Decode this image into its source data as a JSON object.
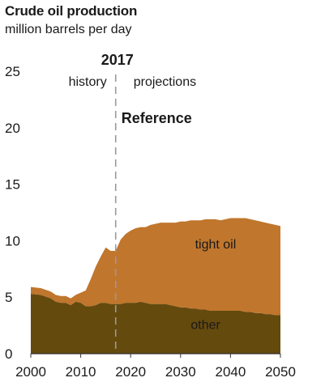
{
  "chart_data": {
    "type": "area",
    "title": "Crude oil production",
    "subtitle": "million barrels per day",
    "xlabel": "",
    "ylabel": "",
    "xlim": [
      2000,
      2050
    ],
    "ylim": [
      0,
      25
    ],
    "x_ticks": [
      2000,
      2010,
      2020,
      2030,
      2040,
      2050
    ],
    "y_ticks": [
      0,
      5,
      10,
      15,
      20,
      25
    ],
    "grid": false,
    "stacked": true,
    "x": [
      2000,
      2002,
      2004,
      2005,
      2006,
      2007,
      2008,
      2009,
      2010,
      2011,
      2012,
      2013,
      2014,
      2015,
      2016,
      2017,
      2018,
      2019,
      2020,
      2021,
      2022,
      2023,
      2024,
      2025,
      2026,
      2027,
      2028,
      2029,
      2030,
      2031,
      2032,
      2033,
      2034,
      2035,
      2036,
      2037,
      2038,
      2039,
      2040,
      2041,
      2042,
      2043,
      2044,
      2045,
      2046,
      2047,
      2048,
      2049,
      2050
    ],
    "series": [
      {
        "name": "other",
        "color": "#654a0e",
        "values": [
          5.3,
          5.2,
          4.9,
          4.6,
          4.5,
          4.5,
          4.3,
          4.6,
          4.5,
          4.2,
          4.2,
          4.3,
          4.5,
          4.5,
          4.4,
          4.4,
          4.4,
          4.5,
          4.5,
          4.5,
          4.6,
          4.5,
          4.4,
          4.4,
          4.4,
          4.4,
          4.3,
          4.2,
          4.1,
          4.1,
          4.0,
          4.0,
          3.9,
          3.9,
          3.8,
          3.8,
          3.8,
          3.8,
          3.8,
          3.8,
          3.8,
          3.7,
          3.7,
          3.6,
          3.6,
          3.5,
          3.5,
          3.4,
          3.4
        ]
      },
      {
        "name": "tight oil",
        "color": "#c0762c",
        "values": [
          0.6,
          0.6,
          0.6,
          0.6,
          0.6,
          0.6,
          0.6,
          0.6,
          0.9,
          1.4,
          2.4,
          3.4,
          4.1,
          4.9,
          4.7,
          4.7,
          5.7,
          6.1,
          6.4,
          6.6,
          6.6,
          6.7,
          7.0,
          7.1,
          7.2,
          7.2,
          7.3,
          7.4,
          7.6,
          7.6,
          7.8,
          7.8,
          7.9,
          8.0,
          8.1,
          8.1,
          8.0,
          8.1,
          8.2,
          8.2,
          8.2,
          8.3,
          8.2,
          8.2,
          8.1,
          8.1,
          8.0,
          8.0,
          7.9
        ]
      }
    ],
    "annotations": {
      "divider_year": 2017,
      "divider_label": "2017",
      "left_label": "history",
      "right_label": "projections",
      "scenario_label": "Reference"
    }
  }
}
